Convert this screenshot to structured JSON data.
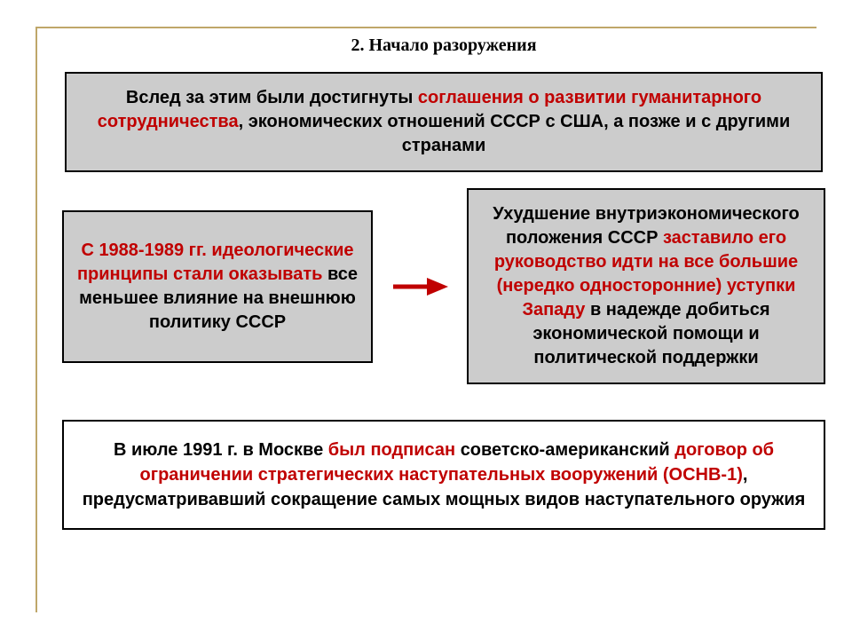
{
  "title": "2. Начало разоружения",
  "box_top": {
    "parts": [
      {
        "text": "Вслед за этим были достигнуты ",
        "cls": "black"
      },
      {
        "text": "соглашения о развитии гуманитарного сотрудничества",
        "cls": "red"
      },
      {
        "text": ", экономических отношений СССР с США, а позже и с другими странами",
        "cls": "black"
      }
    ]
  },
  "box_left": {
    "parts": [
      {
        "text": "С 1988-1989 гг. идеологические принципы стали оказывать ",
        "cls": "red"
      },
      {
        "text": "все меньшее влияние на внешнюю политику СССР",
        "cls": "black"
      }
    ]
  },
  "box_right": {
    "parts": [
      {
        "text": "Ухудшение внутриэкономического положения СССР ",
        "cls": "black"
      },
      {
        "text": "заставило его руководство идти на все большие (нередко односторонние) уступки Западу ",
        "cls": "red"
      },
      {
        "text": "в надежде добиться экономической помощи и политической поддержки",
        "cls": "black"
      }
    ]
  },
  "box_bottom": {
    "parts": [
      {
        "text": "В июле 1991 г. в Москве ",
        "cls": "black"
      },
      {
        "text": "был подписан ",
        "cls": "red"
      },
      {
        "text": "советско-американский ",
        "cls": "black"
      },
      {
        "text": "договор об ограничении стратегических наступательных вооружений (ОСНВ-1)",
        "cls": "red"
      },
      {
        "text": ", предусматривавший сокращение самых мощных видов наступательного оружия",
        "cls": "black"
      }
    ]
  },
  "arrow": {
    "color": "#c00000"
  },
  "colors": {
    "box_bg": "#cccccc",
    "border": "#000000",
    "frame": "#bfa76a",
    "red": "#c00000",
    "black": "#000000",
    "page_bg": "#ffffff"
  }
}
